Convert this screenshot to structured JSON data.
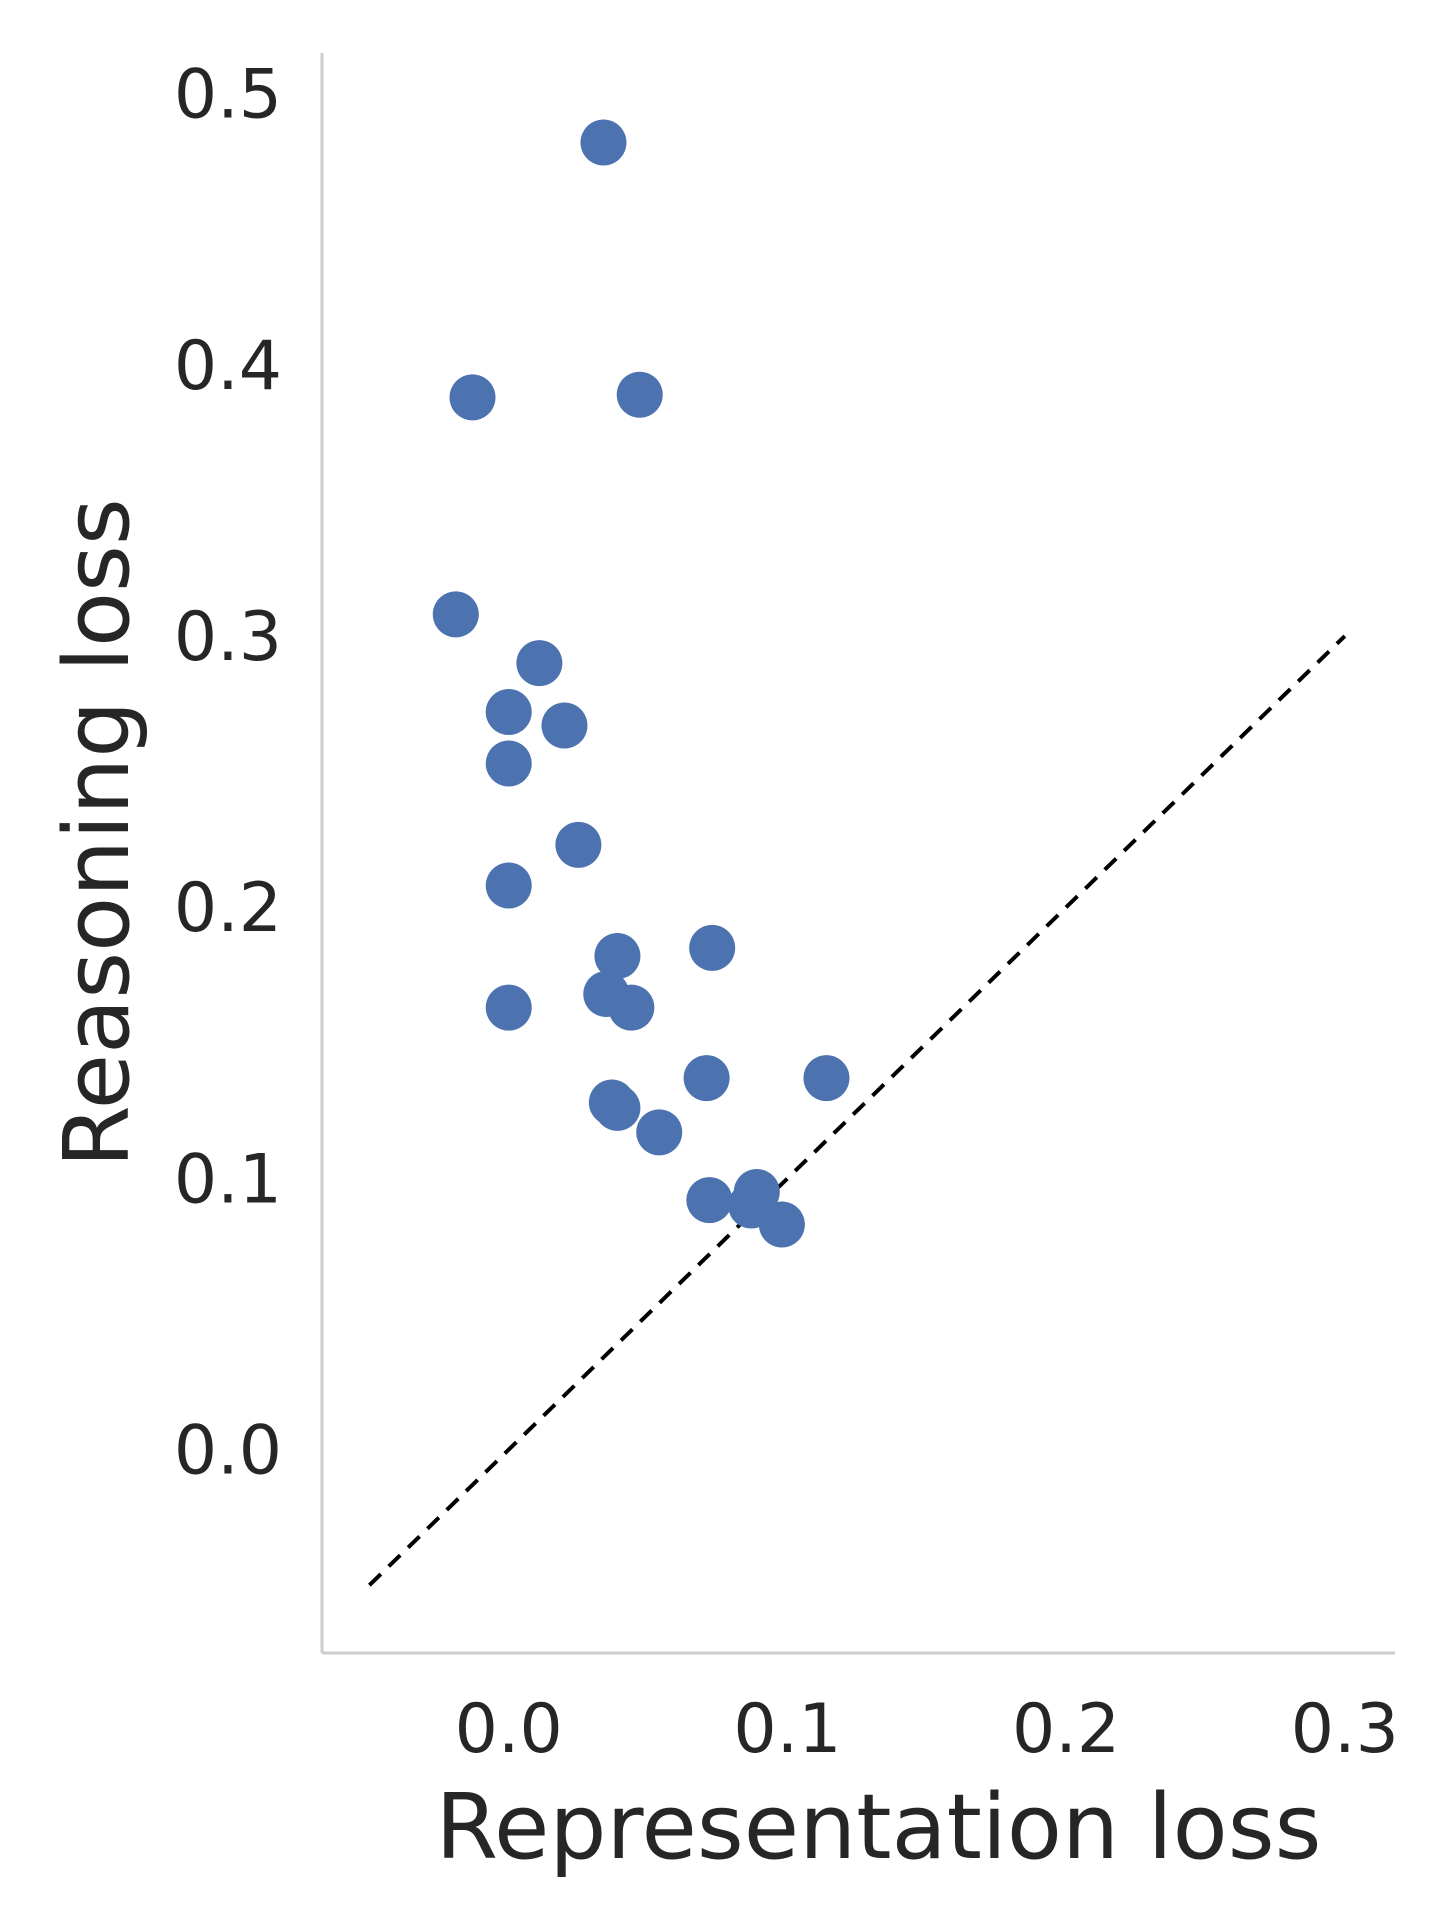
{
  "chart_data": {
    "type": "scatter",
    "xlabel": "Representation loss",
    "ylabel": "Reasoning loss",
    "xlim": [
      -0.067,
      0.318
    ],
    "ylim": [
      -0.075,
      0.515
    ],
    "xticks": [
      0.0,
      0.1,
      0.2,
      0.3
    ],
    "yticks": [
      0.0,
      0.1,
      0.2,
      0.3,
      0.4,
      0.5
    ],
    "xtick_labels": [
      "0.0",
      "0.1",
      "0.2",
      "0.3"
    ],
    "ytick_labels": [
      "0.0",
      "0.1",
      "0.2",
      "0.3",
      "0.4",
      "0.5"
    ],
    "grid": false,
    "reference_line": {
      "style": "dashed",
      "color": "#000000",
      "from": [
        -0.05,
        -0.05
      ],
      "to": [
        0.3,
        0.3
      ]
    },
    "marker_color": "#4c72b0",
    "axis_color": "#cccccc",
    "points": [
      {
        "x": 0.034,
        "y": 0.482
      },
      {
        "x": -0.013,
        "y": 0.388
      },
      {
        "x": 0.047,
        "y": 0.389
      },
      {
        "x": -0.019,
        "y": 0.308
      },
      {
        "x": 0.011,
        "y": 0.29
      },
      {
        "x": 0.0,
        "y": 0.272
      },
      {
        "x": 0.02,
        "y": 0.267
      },
      {
        "x": 0.0,
        "y": 0.253
      },
      {
        "x": 0.025,
        "y": 0.223
      },
      {
        "x": 0.0,
        "y": 0.208
      },
      {
        "x": 0.039,
        "y": 0.182
      },
      {
        "x": 0.073,
        "y": 0.185
      },
      {
        "x": 0.035,
        "y": 0.168
      },
      {
        "x": 0.044,
        "y": 0.163
      },
      {
        "x": 0.0,
        "y": 0.163
      },
      {
        "x": 0.071,
        "y": 0.137
      },
      {
        "x": 0.114,
        "y": 0.137
      },
      {
        "x": 0.037,
        "y": 0.128
      },
      {
        "x": 0.039,
        "y": 0.126
      },
      {
        "x": 0.054,
        "y": 0.117
      },
      {
        "x": 0.072,
        "y": 0.092
      },
      {
        "x": 0.089,
        "y": 0.095
      },
      {
        "x": 0.087,
        "y": 0.09
      },
      {
        "x": 0.098,
        "y": 0.083
      }
    ]
  }
}
